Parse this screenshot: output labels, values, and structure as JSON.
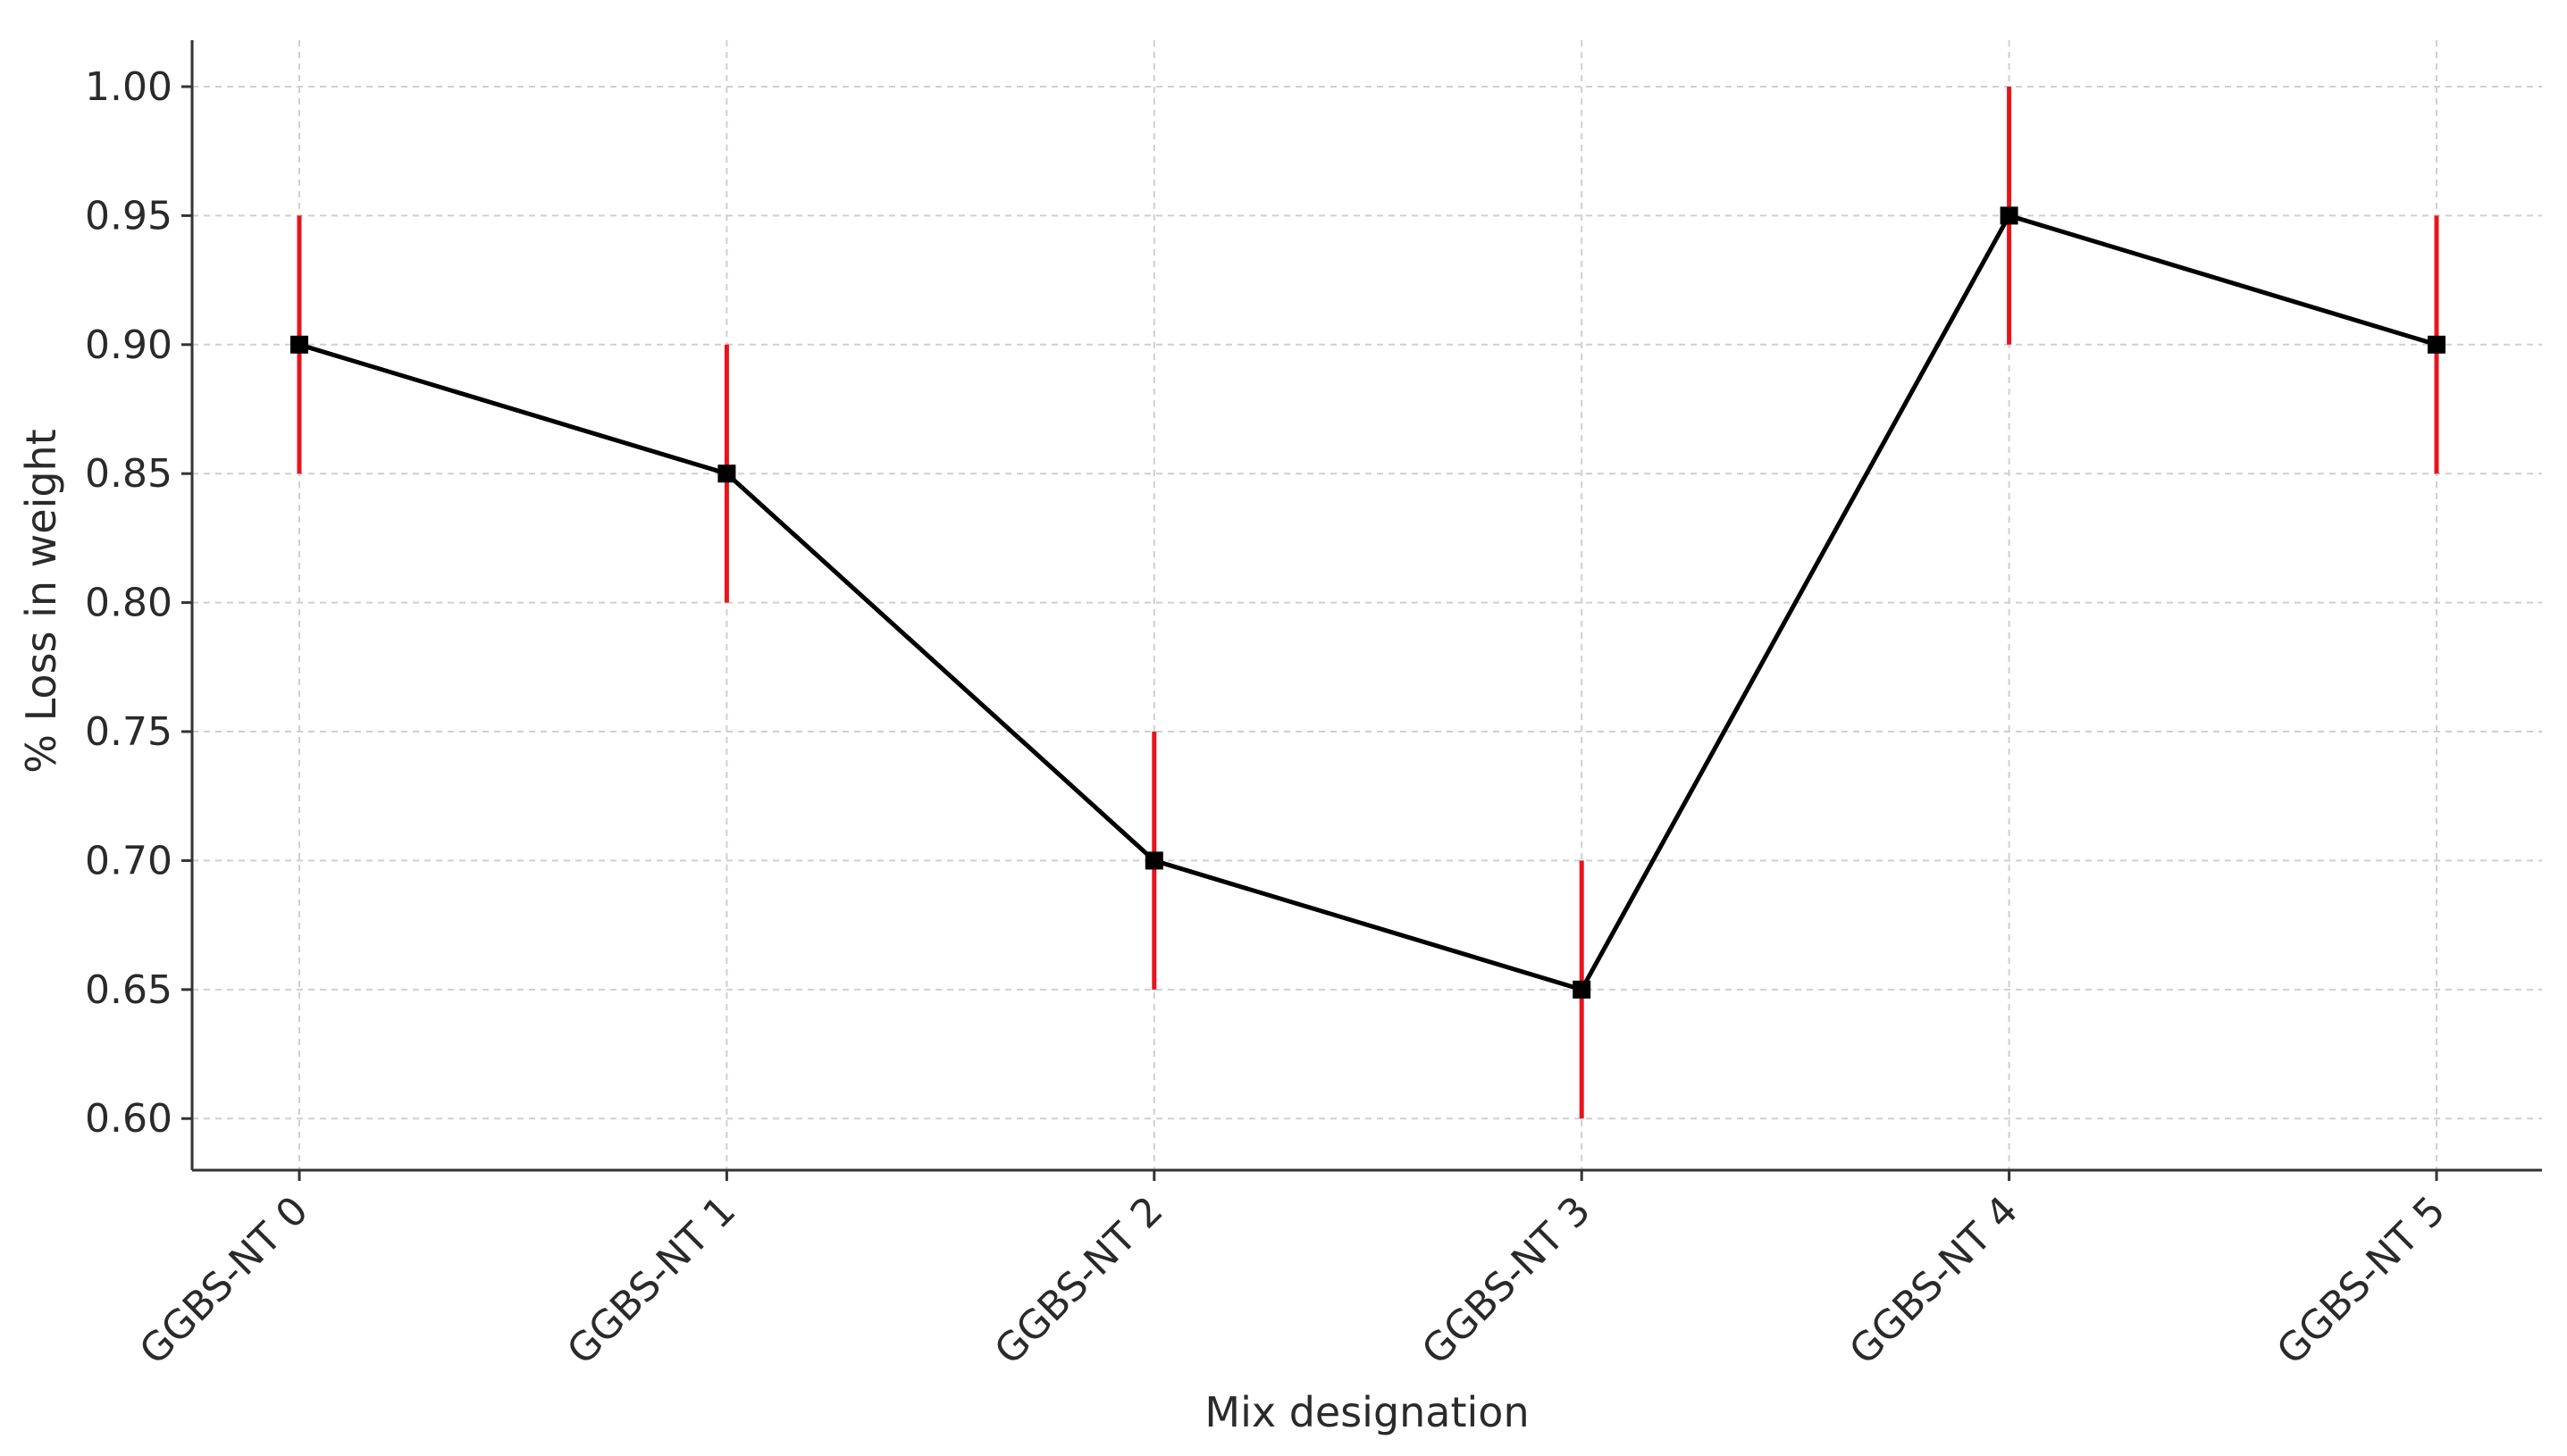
{
  "chart_data": {
    "type": "line",
    "title": "",
    "xlabel": "Mix designation",
    "ylabel": "% Loss in weight",
    "categories": [
      "GGBS-NT 0",
      "GGBS-NT 1",
      "GGBS-NT 2",
      "GGBS-NT 3",
      "GGBS-NT 4",
      "GGBS-NT 5"
    ],
    "series": [
      {
        "values": [
          0.9,
          0.85,
          0.7,
          0.65,
          0.95,
          0.9
        ],
        "error": [
          0.05,
          0.05,
          0.05,
          0.05,
          0.05,
          0.05
        ],
        "line_color": "#000000",
        "marker": "square",
        "error_color": "#e8141c"
      }
    ],
    "yticks": [
      "0.60",
      "0.65",
      "0.70",
      "0.75",
      "0.80",
      "0.85",
      "0.90",
      "0.95",
      "1.00"
    ],
    "ylim": [
      0.58,
      1.018
    ],
    "grid": true
  }
}
